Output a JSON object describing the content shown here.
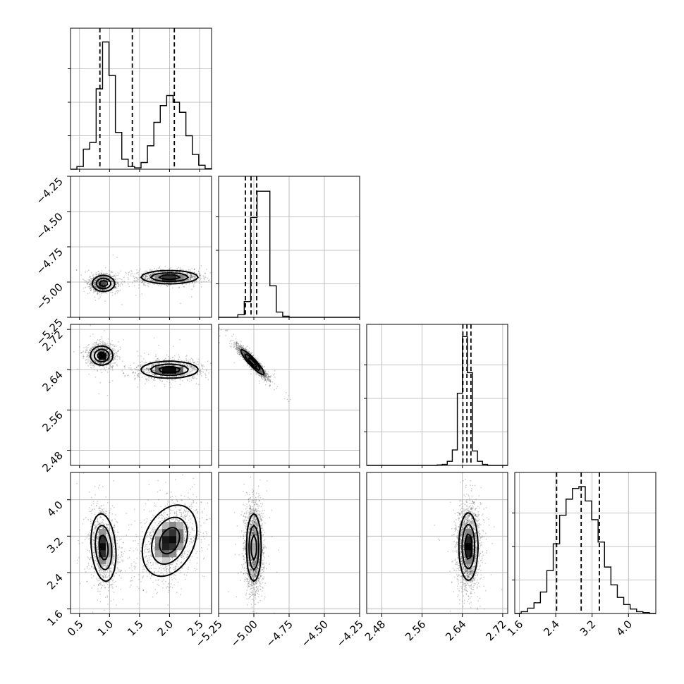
{
  "figure": {
    "background": "#ffffff",
    "grid_color": "#b0b0b0",
    "line_color": "#000000",
    "scatter_color": "#5a5a5a"
  },
  "chart_data": {
    "type": "corner",
    "grid": true,
    "parameters": [
      {
        "index": 0,
        "range": [
          0.35,
          2.7
        ],
        "ticks": [
          0.5,
          1.0,
          1.5,
          2.0,
          2.5
        ],
        "tick_labels": [
          "0.5",
          "1.0",
          "1.5",
          "2.0",
          "2.5"
        ]
      },
      {
        "index": 1,
        "range": [
          -5.25,
          -4.25
        ],
        "ticks": [
          -5.25,
          -5.0,
          -4.75,
          -4.5,
          -4.25
        ],
        "tick_labels": [
          "−5.25",
          "−5.00",
          "−4.75",
          "−4.50",
          "−4.25"
        ]
      },
      {
        "index": 2,
        "range": [
          2.45,
          2.73
        ],
        "ticks": [
          2.48,
          2.56,
          2.64,
          2.72
        ],
        "tick_labels": [
          "2.48",
          "2.56",
          "2.64",
          "2.72"
        ]
      },
      {
        "index": 3,
        "range": [
          1.5,
          4.6
        ],
        "ticks": [
          1.6,
          2.4,
          3.2,
          4.0
        ],
        "tick_labels": [
          "1.6",
          "2.4",
          "3.2",
          "4.0"
        ]
      }
    ],
    "histograms": [
      {
        "param": 0,
        "bins": [
          0.35,
          2.7
        ],
        "counts": [
          0,
          4,
          30,
          40,
          120,
          190,
          140,
          55,
          15,
          4,
          2,
          10,
          35,
          70,
          95,
          110,
          100,
          85,
          50,
          22,
          6,
          1
        ],
        "ymax": 200,
        "quantiles": [
          0.84,
          1.38,
          2.08
        ]
      },
      {
        "param": 1,
        "bins": [
          -5.25,
          -4.25
        ],
        "counts": [
          0,
          0,
          0,
          5,
          30,
          190,
          240,
          240,
          60,
          10,
          2,
          0,
          0,
          0,
          0,
          0,
          0,
          0,
          0,
          0,
          0,
          0
        ],
        "ymax": 255,
        "quantiles": [
          -5.06,
          -5.02,
          -4.98
        ]
      },
      {
        "param": 2,
        "bins": [
          2.45,
          2.73
        ],
        "counts": [
          0,
          0,
          0,
          0,
          0,
          0,
          0,
          0,
          0,
          0,
          0,
          0,
          0,
          0,
          1,
          2,
          8,
          30,
          140,
          250,
          180,
          28,
          8,
          2,
          0,
          0,
          0,
          0
        ],
        "ymax": 260,
        "quantiles": [
          2.641,
          2.649,
          2.657
        ]
      },
      {
        "param": 3,
        "bins": [
          1.5,
          4.6
        ],
        "counts": [
          0,
          2,
          6,
          12,
          24,
          48,
          78,
          110,
          128,
          140,
          142,
          126,
          105,
          80,
          52,
          32,
          18,
          10,
          5,
          2,
          1,
          0
        ],
        "ymax": 150,
        "quantiles": [
          2.42,
          2.96,
          3.36
        ]
      }
    ],
    "joint_panels": [
      {
        "x_param": 0,
        "y_param": 1,
        "modes": [
          {
            "cx": 0.9,
            "cy": -5.01,
            "sx": 0.09,
            "sy": 0.027,
            "rho": 0.0,
            "weight": 0.5
          },
          {
            "cx": 2.0,
            "cy": -4.965,
            "sx": 0.23,
            "sy": 0.022,
            "rho": 0.0,
            "weight": 0.5
          }
        ]
      },
      {
        "x_param": 0,
        "y_param": 2,
        "modes": [
          {
            "cx": 0.87,
            "cy": 2.668,
            "sx": 0.09,
            "sy": 0.009,
            "rho": 0.0,
            "weight": 0.5
          },
          {
            "cx": 2.0,
            "cy": 2.64,
            "sx": 0.23,
            "sy": 0.008,
            "rho": 0.0,
            "weight": 0.5
          }
        ]
      },
      {
        "x_param": 1,
        "y_param": 2,
        "modes": [
          {
            "cx": -5.01,
            "cy": 2.655,
            "sx": 0.04,
            "sy": 0.012,
            "rho": -0.93,
            "weight": 1.0
          }
        ]
      },
      {
        "x_param": 0,
        "y_param": 3,
        "modes": [
          {
            "cx": 0.9,
            "cy": 2.95,
            "sx": 0.1,
            "sy": 0.36,
            "rho": -0.2,
            "weight": 0.5
          },
          {
            "cx": 2.0,
            "cy": 3.1,
            "sx": 0.22,
            "sy": 0.38,
            "rho": 0.3,
            "weight": 0.5
          }
        ]
      },
      {
        "x_param": 1,
        "y_param": 3,
        "modes": [
          {
            "cx": -5.0,
            "cy": 2.95,
            "sx": 0.025,
            "sy": 0.36,
            "rho": 0.0,
            "weight": 1.0
          }
        ]
      },
      {
        "x_param": 2,
        "y_param": 3,
        "modes": [
          {
            "cx": 2.652,
            "cy": 2.97,
            "sx": 0.009,
            "sy": 0.36,
            "rho": 0.0,
            "weight": 1.0
          }
        ]
      }
    ]
  }
}
